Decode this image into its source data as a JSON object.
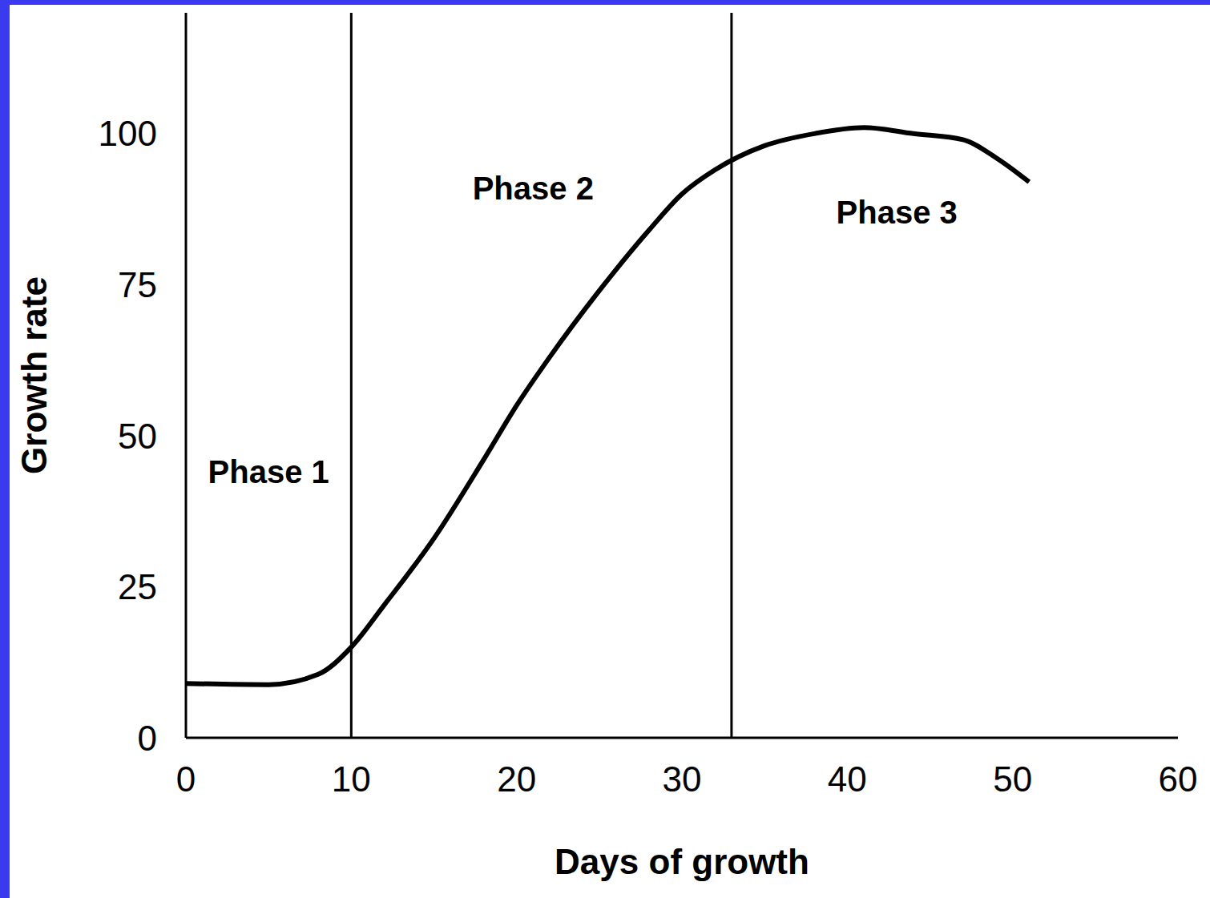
{
  "chart_data": {
    "type": "line",
    "x_label": "Days of growth",
    "y_label": "Growth rate",
    "x": [
      0,
      5,
      8,
      10,
      12,
      15,
      18,
      20,
      22,
      25,
      28,
      30,
      32,
      35,
      38,
      41,
      44,
      47,
      49,
      51
    ],
    "values": [
      9,
      8.8,
      10.5,
      15,
      22,
      33,
      46,
      55,
      63,
      74,
      84,
      90,
      94,
      98,
      100,
      101,
      100,
      99,
      96,
      92
    ],
    "color": "#000000",
    "xlim": [
      0,
      60
    ],
    "xticks": [
      0,
      10,
      20,
      30,
      40,
      50,
      60
    ],
    "ylim": [
      0,
      120
    ],
    "yticks": [
      0,
      25,
      50,
      75,
      100
    ],
    "grid": false,
    "phase_boundaries": [
      10,
      33
    ],
    "annotations": [
      {
        "text": "Phase 1",
        "x": 5,
        "y": 44
      },
      {
        "text": "Phase 2",
        "x": 21,
        "y": 91
      },
      {
        "text": "Phase 3",
        "x": 43,
        "y": 87
      }
    ]
  }
}
